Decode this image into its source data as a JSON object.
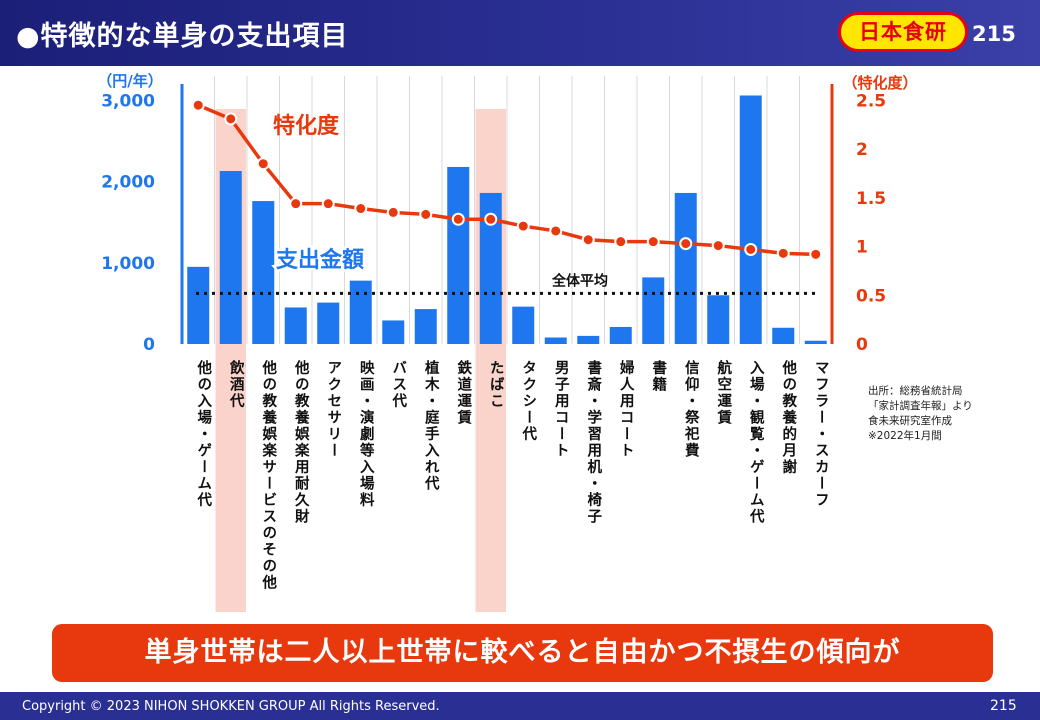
{
  "header": {
    "title": "●特徴的な単身の支出項目",
    "logo_text": "日本食研",
    "page_number": "215"
  },
  "colors": {
    "bar": "#1e77ee",
    "line": "#e8380d",
    "highlight": "#f9c9bd",
    "header": "#2a2f93"
  },
  "chart_data": {
    "type": "bar+line",
    "categories": [
      "他の入場・ゲーム代",
      "飲酒代",
      "他の教養娯楽サービスのその他",
      "他の教養娯楽用耐久財",
      "アクセサリー",
      "映画・演劇等入場料",
      "バス代",
      "植木・庭手入れ代",
      "鉄道運賃",
      "たばこ",
      "タクシー代",
      "男子用コート",
      "書斎・学習用机・椅子",
      "婦人用コート",
      "書籍",
      "信仰・祭祀費",
      "航空運賃",
      "入場・観覧・ゲーム代",
      "他の教養的月謝",
      "マフラー・スカーフ"
    ],
    "series": [
      {
        "name": "支出金額",
        "type": "bar",
        "axis": "left",
        "values": [
          950,
          2130,
          1760,
          450,
          510,
          780,
          290,
          430,
          2180,
          1860,
          460,
          80,
          100,
          210,
          820,
          1860,
          600,
          3060,
          200,
          40
        ]
      },
      {
        "name": "特化度",
        "type": "line",
        "axis": "right",
        "values": [
          2.45,
          2.31,
          1.85,
          1.44,
          1.44,
          1.39,
          1.35,
          1.33,
          1.28,
          1.28,
          1.21,
          1.16,
          1.07,
          1.05,
          1.05,
          1.03,
          1.01,
          0.97,
          0.93,
          0.92
        ]
      }
    ],
    "highlight_categories": [
      "飲酒代",
      "たばこ"
    ],
    "reference_line": {
      "label": "全体平均",
      "value": 0.52,
      "axis": "right"
    },
    "left_axis": {
      "unit": "（円/年）",
      "ylim": [
        0,
        3300
      ],
      "ticks": [
        0,
        1000,
        2000,
        3000
      ],
      "tick_labels": [
        "0",
        "1,000",
        "2,000",
        "3,000"
      ]
    },
    "right_axis": {
      "unit": "（特化度）",
      "ylim": [
        0,
        2.75
      ],
      "ticks": [
        0,
        0.5,
        1,
        1.5,
        2,
        2.5
      ],
      "tick_labels": [
        "0",
        "0.5",
        "1",
        "1.5",
        "2",
        "2.5"
      ]
    },
    "annotations": {
      "line_label": "特化度",
      "bar_label": "支出金額"
    },
    "grid": "vertical"
  },
  "source_note": "出所：総務省統計局\n「家計調査年報」より\n食未来研究室作成\n※2022年1月間",
  "banner": {
    "text": "単身世帯は二人以上世帯に較べると自由かつ不摂生の傾向が"
  },
  "footer": {
    "copyright": "Copyright © 2023 NIHON SHOKKEN GROUP All Rights Reserved.",
    "page_number": "215"
  }
}
